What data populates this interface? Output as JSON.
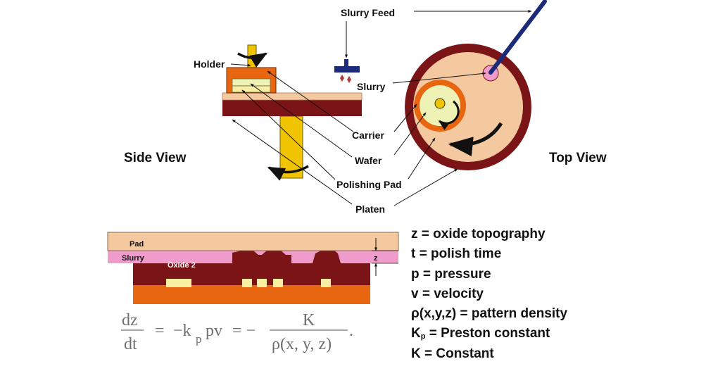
{
  "colors": {
    "platen": "#7b1416",
    "pad": "#f4c9a0",
    "carrier": "#e8660f",
    "wafer": "#eef2b4",
    "shaft": "#f0c400",
    "slurry": "#ef9bcb",
    "feed": "#1c2a7a",
    "drop": "#b33a3a",
    "oxide": "#7b1416",
    "metal": "#f8eea4",
    "substrate": "#e8660f"
  },
  "views": {
    "side": "Side View",
    "top": "Top View"
  },
  "callouts": {
    "slurry_feed": "Slurry Feed",
    "holder": "Holder",
    "slurry": "Slurry",
    "carrier": "Carrier",
    "wafer": "Wafer",
    "polishing_pad": "Polishing Pad",
    "platen": "Platen"
  },
  "cross_section": {
    "pad": "Pad",
    "slurry": "Slurry",
    "oxide": "Oxide 2",
    "z_marker": "z"
  },
  "equation": {
    "lhs_num": "dz",
    "lhs_den": "dt",
    "eq": "=",
    "minus": "−k",
    "kp_sub": "p",
    "pv": "pv",
    "eq2": "= −",
    "rhs_num": "K",
    "rhs_den": "ρ(x, y, z)",
    "period": "."
  },
  "legend": {
    "z": "z = oxide topography",
    "t": "t = polish time",
    "p": "p = pressure",
    "v": "v = velocity",
    "rho": "ρ(x,y,z) = pattern density",
    "kp_pre": "K",
    "kp_sub": "p",
    "kp_post": " = Preston constant",
    "K": "K = Constant"
  }
}
